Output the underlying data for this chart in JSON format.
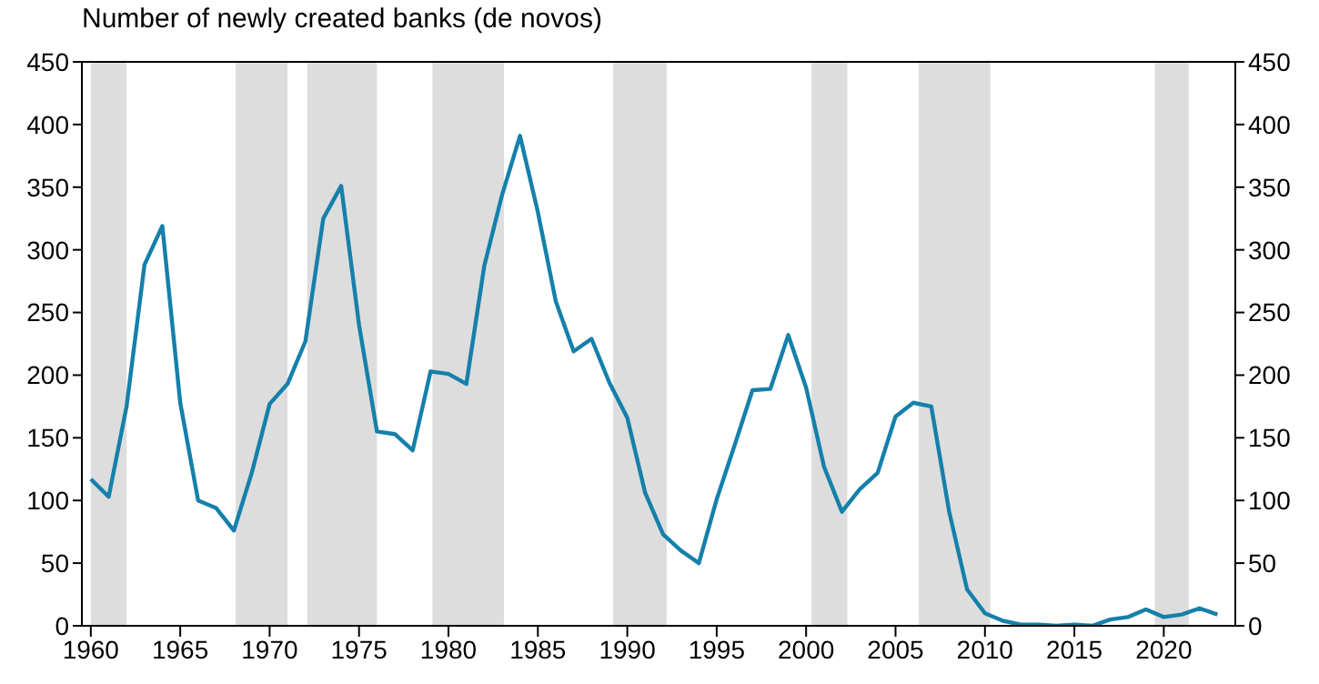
{
  "chart_data": {
    "type": "line",
    "title": "Number of newly created banks (de novos)",
    "x": [
      1960,
      1961,
      1962,
      1963,
      1964,
      1965,
      1966,
      1967,
      1968,
      1969,
      1970,
      1971,
      1972,
      1973,
      1974,
      1975,
      1976,
      1977,
      1978,
      1979,
      1980,
      1981,
      1982,
      1983,
      1984,
      1985,
      1986,
      1987,
      1988,
      1989,
      1990,
      1991,
      1992,
      1993,
      1994,
      1995,
      1996,
      1997,
      1998,
      1999,
      2000,
      2001,
      2002,
      2003,
      2004,
      2005,
      2006,
      2007,
      2008,
      2009,
      2010,
      2011,
      2012,
      2013,
      2014,
      2015,
      2016,
      2017,
      2018,
      2019,
      2020,
      2021,
      2022,
      2023
    ],
    "series": [
      {
        "color": "#1580aa",
        "values": [
          117,
          103,
          175,
          288,
          319,
          178,
          100,
          94,
          76,
          122,
          177,
          193,
          227,
          325,
          351,
          240,
          155,
          153,
          140,
          203,
          201,
          193,
          287,
          344,
          391,
          330,
          259,
          219,
          229,
          194,
          166,
          106,
          73,
          60,
          50,
          101,
          144,
          188,
          189,
          232,
          190,
          127,
          91,
          109,
          122,
          167,
          178,
          175,
          91,
          29,
          10,
          4,
          1,
          1,
          0,
          1,
          0,
          5,
          7,
          13,
          7,
          9,
          14,
          9
        ]
      }
    ],
    "xlim": [
      1959.5,
      2024
    ],
    "xticks": [
      1960,
      1965,
      1970,
      1975,
      1980,
      1985,
      1990,
      1995,
      2000,
      2005,
      2010,
      2015,
      2020
    ],
    "ylim": [
      0,
      450
    ],
    "yticks": [
      0,
      50,
      100,
      150,
      200,
      250,
      300,
      350,
      400,
      450
    ],
    "y2lim": [
      0,
      450
    ],
    "y2ticks": [
      0,
      50,
      100,
      150,
      200,
      250,
      300,
      350,
      400,
      450
    ],
    "bands": [
      {
        "axis": "x",
        "from": 1960,
        "to": 1962,
        "color": "#dddddd"
      },
      {
        "axis": "x",
        "from": 1968.1,
        "to": 1971,
        "color": "#dddddd"
      },
      {
        "axis": "x",
        "from": 1972.1,
        "to": 1976,
        "color": "#dddddd"
      },
      {
        "axis": "x",
        "from": 1979.1,
        "to": 1983.1,
        "color": "#dddddd"
      },
      {
        "axis": "x",
        "from": 1989.2,
        "to": 1992.2,
        "color": "#dddddd"
      },
      {
        "axis": "x",
        "from": 2000.3,
        "to": 2002.3,
        "color": "#dddddd"
      },
      {
        "axis": "x",
        "from": 2006.3,
        "to": 2010.3,
        "color": "#dddddd"
      },
      {
        "axis": "x",
        "from": 2019.5,
        "to": 2021.4,
        "color": "#dddddd"
      }
    ],
    "grid": false,
    "legend": false,
    "marker": "none",
    "line_style": "solid"
  }
}
